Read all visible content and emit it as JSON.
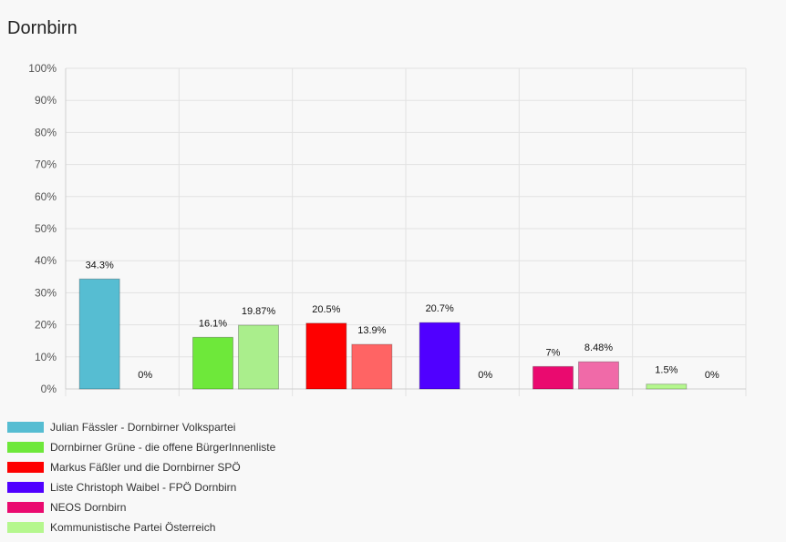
{
  "page": {
    "title": "Dornbirn"
  },
  "chart_data": {
    "type": "bar",
    "title": "",
    "xlabel": "",
    "ylabel": "",
    "ylim": [
      0,
      100
    ],
    "y_ticks": [
      "0%",
      "10%",
      "20%",
      "30%",
      "40%",
      "50%",
      "60%",
      "70%",
      "80%",
      "90%",
      "100%"
    ],
    "grid": true,
    "legend_position": "bottom-left",
    "groups": [
      {
        "name": "Julian Fässler - Dornbirner Volkspartei",
        "color": "#56bdd2",
        "values": [
          34.3,
          0
        ],
        "labels": [
          "34.3%",
          "0%"
        ],
        "colors": [
          "#56bdd2",
          "#8fd3e2"
        ]
      },
      {
        "name": "Dornbirner Grüne - die offene BürgerInnenliste",
        "color": "#6ee83a",
        "values": [
          16.1,
          19.87
        ],
        "labels": [
          "16.1%",
          "19.87%"
        ],
        "colors": [
          "#6ee83a",
          "#aaee8c"
        ]
      },
      {
        "name": "Markus Fäßler und die Dornbirner SPÖ",
        "color": "#fe0000",
        "values": [
          20.5,
          13.9
        ],
        "labels": [
          "20.5%",
          "13.9%"
        ],
        "colors": [
          "#fe0000",
          "#ff6464"
        ]
      },
      {
        "name": "Liste Christoph Waibel - FPÖ Dornbirn",
        "color": "#5000ff",
        "values": [
          20.7,
          0
        ],
        "labels": [
          "20.7%",
          "0%"
        ],
        "colors": [
          "#5000ff",
          "#9466ff"
        ]
      },
      {
        "name": "NEOS Dornbirn",
        "color": "#ea0a6f",
        "values": [
          7,
          8.48
        ],
        "labels": [
          "7%",
          "8.48%"
        ],
        "colors": [
          "#ea0a6f",
          "#f06aa8"
        ]
      },
      {
        "name": "Kommunistische Partei Österreich",
        "color": "#b5f78e",
        "values": [
          1.5,
          0
        ],
        "labels": [
          "1.5%",
          "0%"
        ],
        "colors": [
          "#b5f78e",
          "#d2fab8"
        ]
      }
    ]
  }
}
